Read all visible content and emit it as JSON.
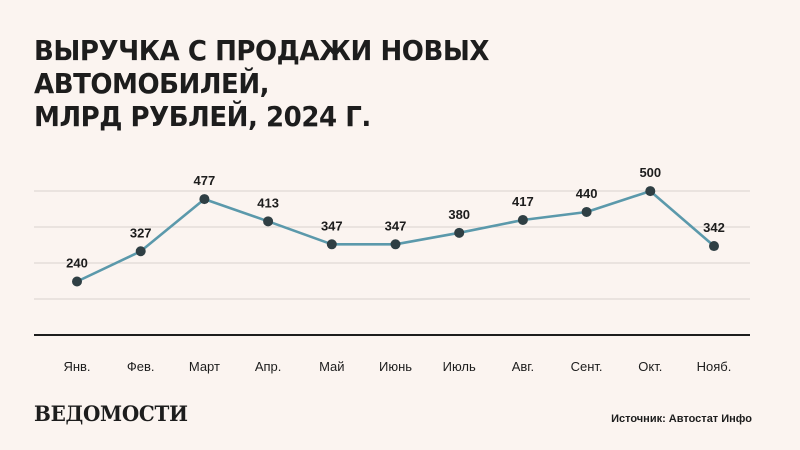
{
  "title_lines": [
    "ВЫРУЧКА С ПРОДАЖИ НОВЫХ АВТОМОБИЛЕЙ,",
    "МЛРД РУБЛЕЙ, 2024 Г."
  ],
  "chart_data": {
    "type": "line",
    "categories": [
      "Янв.",
      "Фев.",
      "Март",
      "Апр.",
      "Май",
      "Июнь",
      "Июль",
      "Авг.",
      "Сент.",
      "Окт.",
      "Нояб."
    ],
    "series": [
      {
        "values": [
          240,
          327,
          477,
          413,
          347,
          347,
          380,
          417,
          440,
          500,
          342
        ]
      }
    ],
    "data_labels": [
      "240",
      "327",
      "477",
      "413",
      "347",
      "347",
      "380",
      "417",
      "440",
      "500",
      "342"
    ],
    "ylim": [
      0,
      500
    ],
    "grid": true,
    "colors": {
      "line": "#5b99ab",
      "marker": "#2f3f44",
      "grid": "#d9d2ce",
      "baseline": "#1d1d1d",
      "text": "#1d1d1d"
    }
  },
  "logo_text": "ВЕДОМОСТИ",
  "source_text": "Источник: Автостат Инфо"
}
